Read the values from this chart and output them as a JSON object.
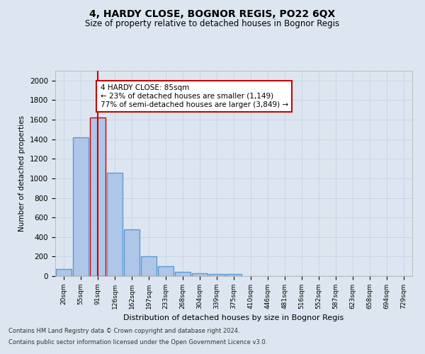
{
  "title1": "4, HARDY CLOSE, BOGNOR REGIS, PO22 6QX",
  "title2": "Size of property relative to detached houses in Bognor Regis",
  "xlabel": "Distribution of detached houses by size in Bognor Regis",
  "ylabel": "Number of detached properties",
  "categories": [
    "20sqm",
    "55sqm",
    "91sqm",
    "126sqm",
    "162sqm",
    "197sqm",
    "233sqm",
    "268sqm",
    "304sqm",
    "339sqm",
    "375sqm",
    "410sqm",
    "446sqm",
    "481sqm",
    "516sqm",
    "552sqm",
    "587sqm",
    "623sqm",
    "658sqm",
    "694sqm",
    "729sqm"
  ],
  "values": [
    75,
    1420,
    1620,
    1060,
    475,
    200,
    100,
    40,
    30,
    20,
    20,
    0,
    0,
    0,
    0,
    0,
    0,
    0,
    0,
    0,
    0
  ],
  "bar_color": "#aec6e8",
  "bar_edge_color": "#5b9bd5",
  "highlight_bar_index": 2,
  "highlight_edge_color": "#cc0000",
  "annotation_box_text": "4 HARDY CLOSE: 85sqm\n← 23% of detached houses are smaller (1,149)\n77% of semi-detached houses are larger (3,849) →",
  "annotation_box_edge_color": "#cc0000",
  "vline_x_index": 2,
  "vline_color": "#cc0000",
  "ylim": [
    0,
    2100
  ],
  "yticks": [
    0,
    200,
    400,
    600,
    800,
    1000,
    1200,
    1400,
    1600,
    1800,
    2000
  ],
  "footer1": "Contains HM Land Registry data © Crown copyright and database right 2024.",
  "footer2": "Contains public sector information licensed under the Open Government Licence v3.0.",
  "grid_color": "#c8d4e8",
  "background_color": "#dde6f0",
  "plot_bg_color": "#dde6f0"
}
